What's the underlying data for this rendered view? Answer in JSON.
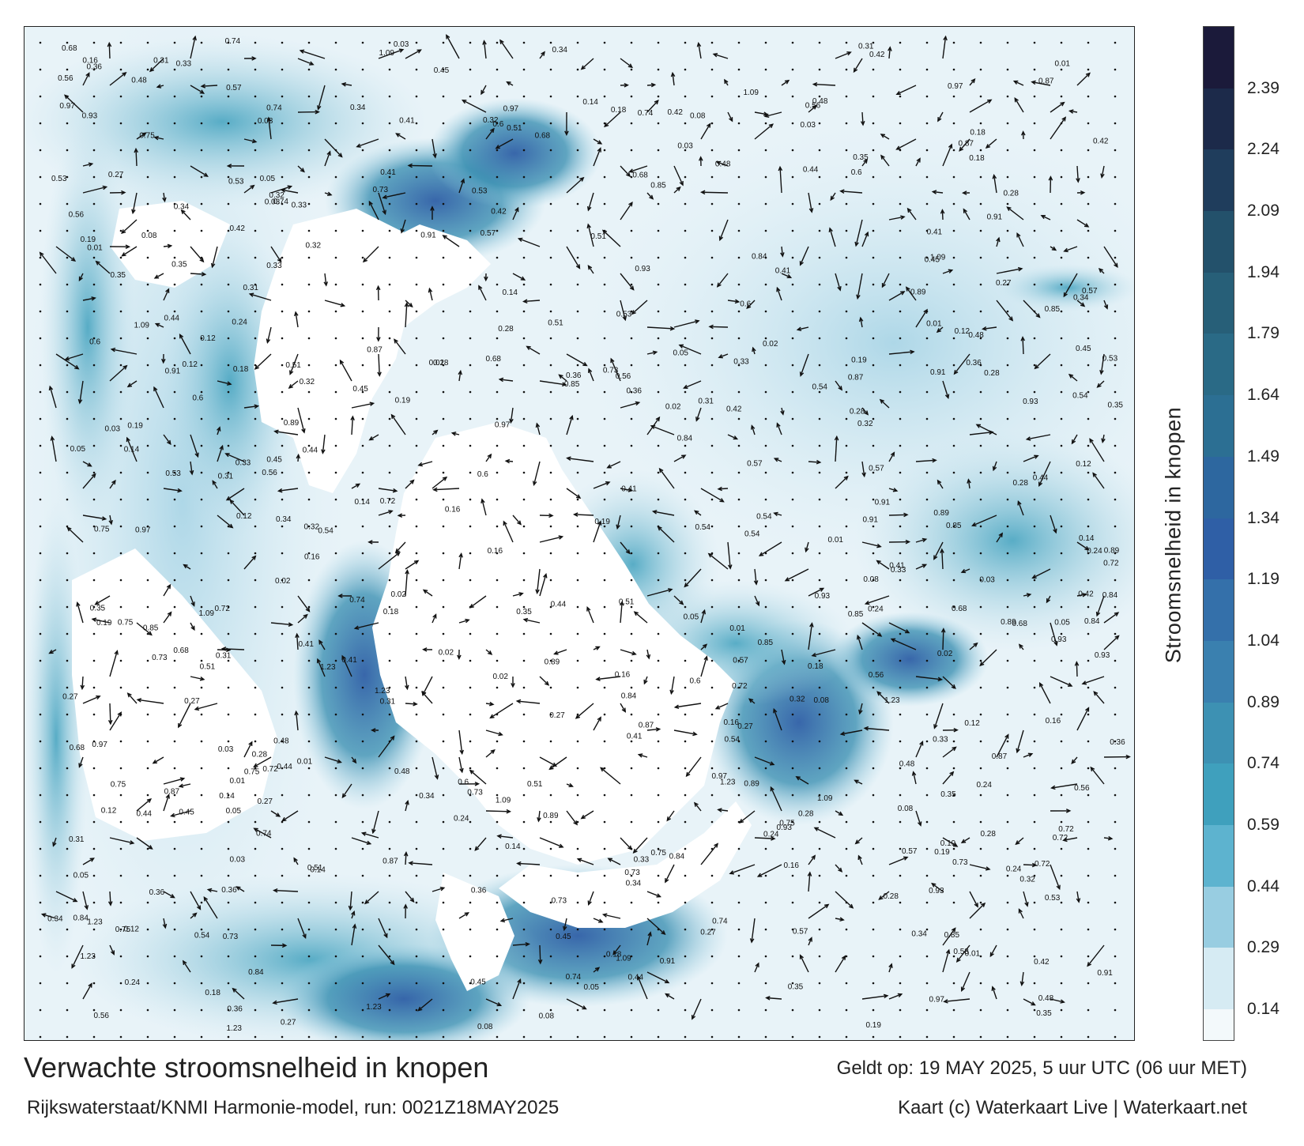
{
  "map": {
    "title": "Verwachte stroomsnelheid in knopen",
    "run_info": "Rijkswaterstaat/KNMI Harmonie-model, run: 0021Z18MAY2025",
    "valid_time": "Geldt op: 19 MAY 2025, 5 uur UTC (06 uur MET)",
    "credit": "Kaart (c) Waterkaart Live | Waterkaart.net"
  },
  "legend": {
    "title": "Stroomsnelheid in knopen",
    "ticks": [
      "2.39",
      "2.24",
      "2.09",
      "1.94",
      "1.79",
      "1.64",
      "1.49",
      "1.34",
      "1.19",
      "1.04",
      "0.89",
      "0.74",
      "0.59",
      "0.44",
      "0.29",
      "0.14"
    ],
    "colors": [
      "#1b1a3a",
      "#1c2a4a",
      "#1f3d5c",
      "#23516b",
      "#275f78",
      "#2a6a86",
      "#2c6f93",
      "#2d679f",
      "#2f5fa6",
      "#3470aa",
      "#3a80af",
      "#3d91b3",
      "#3fa0bd",
      "#5db3cf",
      "#98cde1",
      "#d6ebf3"
    ]
  },
  "sample_labels": [
    "0.28",
    "0.36",
    "0.34",
    "0.35",
    "0.19",
    "0.18",
    "0.27",
    "0.41",
    "0.16",
    "0.14",
    "0.45",
    "0.74",
    "0.75",
    "0.85",
    "0.93",
    "1.09",
    "1.23",
    "0.91",
    "0.84",
    "0.73",
    "0.56",
    "0.53",
    "0.68",
    "0.97",
    "0.87",
    "0.72",
    "0.51",
    "0.89",
    "0.6",
    "0.57",
    "0.48",
    "0.24",
    "0.12",
    "0.08",
    "0.05",
    "0.03",
    "0.01",
    "0.02",
    "0.44",
    "0.42",
    "0.54",
    "0.33",
    "0.32",
    "0.31"
  ]
}
